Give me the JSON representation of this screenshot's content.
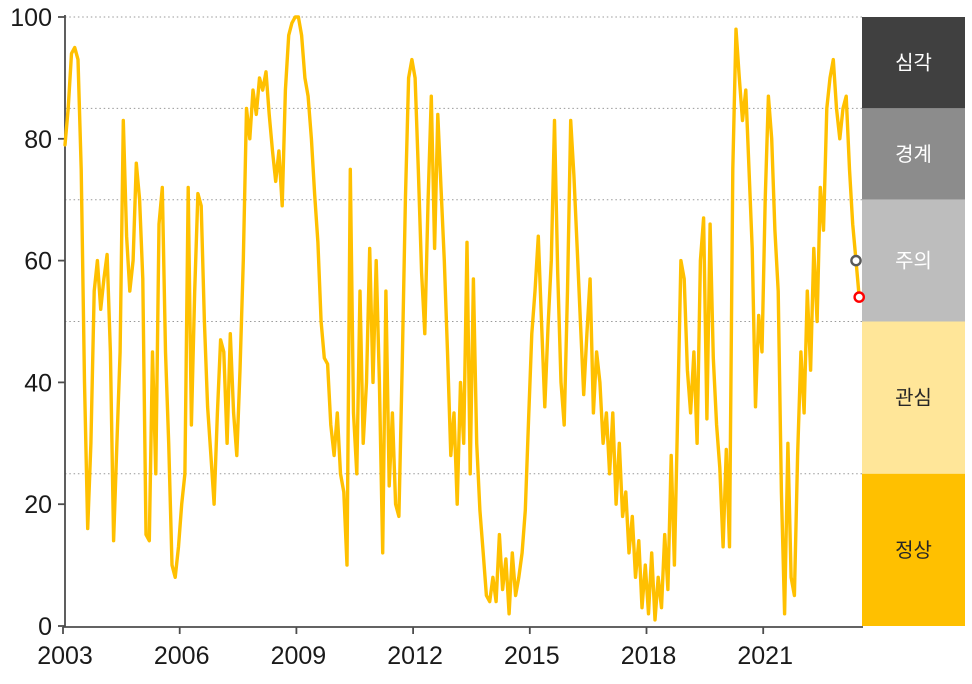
{
  "chart_data": {
    "type": "line",
    "title": "",
    "x_axis": {
      "tick_labels": [
        "2003",
        "2006",
        "2009",
        "2012",
        "2015",
        "2018",
        "2021"
      ],
      "tick_years": [
        2003,
        2006,
        2009,
        2012,
        2015,
        2018,
        2021
      ],
      "range_years": [
        2003,
        2023.75
      ]
    },
    "y_axis": {
      "tick_labels": [
        "0",
        "20",
        "40",
        "60",
        "80",
        "100"
      ],
      "tick_values": [
        0,
        20,
        40,
        60,
        80,
        100
      ],
      "range": [
        0,
        100
      ]
    },
    "gridline_values": [
      25,
      50,
      70,
      85,
      100
    ],
    "grid_on": true,
    "legend_position": "right-band",
    "series": [
      {
        "name": "stress-index",
        "color": "#FFC000",
        "start_year": 2003,
        "frequency": "monthly",
        "values": [
          79,
          85,
          94,
          95,
          93,
          75,
          40,
          16,
          30,
          55,
          60,
          52,
          57,
          61,
          45,
          14,
          30,
          45,
          83,
          64,
          55,
          60,
          76,
          70,
          57,
          15,
          14,
          45,
          25,
          66,
          72,
          45,
          30,
          10,
          8,
          13,
          20,
          25,
          72,
          33,
          55,
          71,
          69,
          50,
          36,
          28,
          20,
          35,
          47,
          45,
          30,
          48,
          35,
          28,
          42,
          60,
          85,
          80,
          88,
          84,
          90,
          88,
          91,
          84,
          78,
          73,
          78,
          69,
          88,
          97,
          99,
          100,
          100,
          97,
          90,
          87,
          80,
          71,
          63,
          50,
          44,
          43,
          33,
          28,
          35,
          25,
          22,
          10,
          75,
          35,
          25,
          55,
          30,
          40,
          62,
          40,
          60,
          40,
          12,
          55,
          23,
          35,
          20,
          18,
          42,
          70,
          90,
          93,
          90,
          75,
          58,
          48,
          70,
          87,
          62,
          84,
          72,
          60,
          45,
          28,
          35,
          20,
          40,
          30,
          63,
          25,
          57,
          30,
          19,
          12,
          5,
          4,
          8,
          4,
          15,
          6,
          11,
          2,
          12,
          5,
          8,
          12,
          19,
          34,
          48,
          55,
          64,
          50,
          36,
          49,
          60,
          83,
          58,
          40,
          33,
          55,
          83,
          74,
          62,
          50,
          38,
          48,
          57,
          35,
          45,
          40,
          30,
          35,
          25,
          35,
          20,
          30,
          18,
          22,
          12,
          18,
          8,
          14,
          3,
          10,
          2,
          12,
          1,
          8,
          3,
          15,
          6,
          28,
          10,
          35,
          60,
          57,
          42,
          35,
          45,
          30,
          60,
          67,
          34,
          66,
          44,
          33,
          26,
          13,
          29,
          13,
          75,
          98,
          90,
          83,
          88,
          75,
          62,
          36,
          51,
          45,
          70,
          87,
          80,
          65,
          55,
          22,
          2,
          30,
          8,
          5,
          28,
          45,
          35,
          55,
          42,
          62,
          50,
          72,
          65,
          85,
          90,
          93,
          85,
          80,
          85,
          87,
          75,
          66,
          60,
          54
        ]
      }
    ],
    "end_markers": [
      {
        "name": "previous-point-marker",
        "value": 60,
        "stroke": "#595959"
      },
      {
        "name": "latest-point-marker",
        "value": 54,
        "stroke": "#FF0000"
      }
    ],
    "bands": [
      {
        "label": "심각",
        "from": 85,
        "to": 100,
        "color": "#404040",
        "text_color": "#FFFFFF"
      },
      {
        "label": "경계",
        "from": 70,
        "to": 85,
        "color": "#8C8C8C",
        "text_color": "#FFFFFF"
      },
      {
        "label": "주의",
        "from": 50,
        "to": 70,
        "color": "#BDBDBD",
        "text_color": "#FFFFFF"
      },
      {
        "label": "관심",
        "from": 25,
        "to": 50,
        "color": "#FFE699",
        "text_color": "#262626"
      },
      {
        "label": "정상",
        "from": 0,
        "to": 25,
        "color": "#FFC000",
        "text_color": "#262626"
      }
    ],
    "axis_color": "#4d4d4d",
    "gridline_color": "#999999",
    "tick_label_color": "#1a1a1a"
  }
}
